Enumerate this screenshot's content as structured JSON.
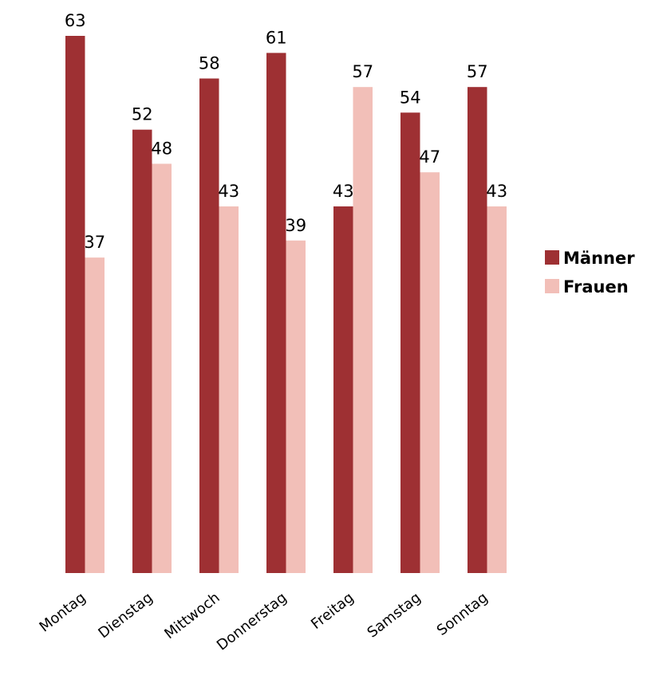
{
  "chart_data": {
    "type": "bar",
    "categories": [
      "Montag",
      "Dienstag",
      "Mittwoch",
      "Donnerstag",
      "Freitag",
      "Samstag",
      "Sonntag"
    ],
    "series": [
      {
        "name": "Männer",
        "values": [
          63,
          52,
          58,
          61,
          43,
          54,
          57
        ],
        "color": "#9e3033"
      },
      {
        "name": "Frauen",
        "values": [
          37,
          48,
          43,
          39,
          57,
          47,
          43
        ],
        "color": "#f2bfb8"
      }
    ],
    "ylim": [
      0,
      63
    ],
    "legend_position": "right",
    "grid": false,
    "data_labels": true
  }
}
